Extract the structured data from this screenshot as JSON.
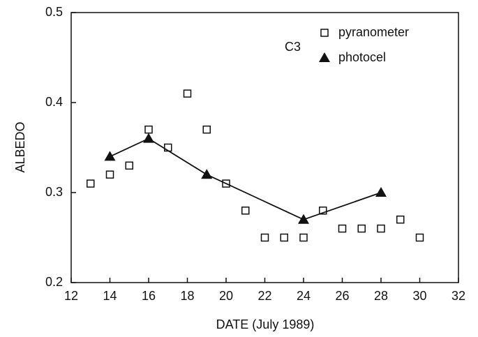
{
  "chart_data": {
    "type": "scatter",
    "annotation": "C3",
    "xlabel": "DATE (July 1989)",
    "ylabel": "ALBEDO",
    "xlim": [
      12,
      32
    ],
    "xticks": [
      12,
      14,
      16,
      18,
      20,
      22,
      24,
      26,
      28,
      30,
      32
    ],
    "ylim": [
      0.2,
      0.5
    ],
    "yticks": [
      0.2,
      0.3,
      0.4,
      0.5
    ],
    "legend": "upper right",
    "series": [
      {
        "name": "pyranometer",
        "color": "#111111",
        "marker": "square",
        "line": false,
        "x": [
          13,
          14,
          15,
          16,
          17,
          18,
          19,
          20,
          21,
          22,
          23,
          24,
          25,
          26,
          27,
          28,
          29,
          30
        ],
        "values": [
          0.31,
          0.32,
          0.33,
          0.37,
          0.35,
          0.41,
          0.37,
          0.31,
          0.28,
          0.25,
          0.25,
          0.25,
          0.28,
          0.26,
          0.26,
          0.26,
          0.27,
          0.25
        ]
      },
      {
        "name": "photocel",
        "color": "#111111",
        "marker": "triangle",
        "line": true,
        "x": [
          14,
          16,
          19,
          24,
          28
        ],
        "values": [
          0.34,
          0.36,
          0.32,
          0.27,
          0.3
        ]
      }
    ]
  }
}
